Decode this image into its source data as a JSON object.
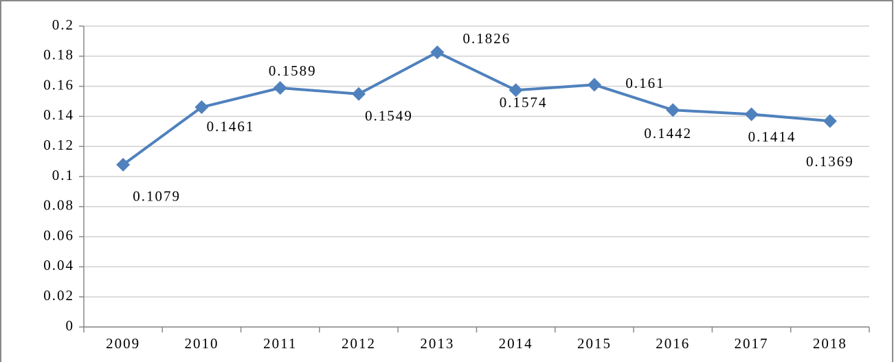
{
  "chart_data": {
    "type": "line",
    "categories": [
      "2009",
      "2010",
      "2011",
      "2012",
      "2013",
      "2014",
      "2015",
      "2016",
      "2017",
      "2018"
    ],
    "values": [
      0.1079,
      0.1461,
      0.1589,
      0.1549,
      0.1826,
      0.1574,
      0.161,
      0.1442,
      0.1414,
      0.1369
    ],
    "color": "#4f81bd",
    "ylim": [
      0,
      0.2
    ],
    "yticks": [
      0,
      0.02,
      0.04,
      0.06,
      0.08,
      0.1,
      0.12,
      0.14,
      0.16,
      0.18,
      0.2
    ],
    "grid": true
  }
}
